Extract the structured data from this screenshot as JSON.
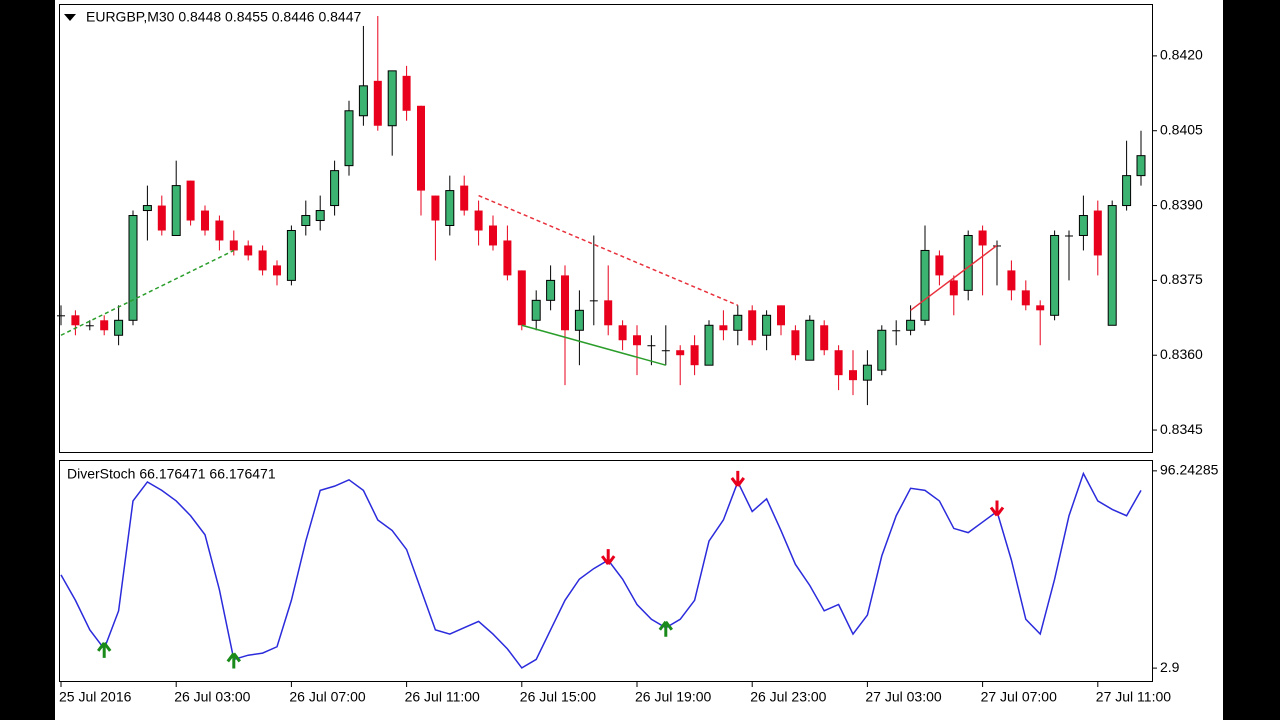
{
  "chart_data": [
    {
      "type": "candlestick",
      "title": "EURGBP,M30  0.8448 0.8455 0.8446 0.8447",
      "open": [
        0.8368,
        0.8368,
        0.8366,
        0.8367,
        0.8364,
        0.8367,
        0.8389,
        0.839,
        0.8384,
        0.8395,
        0.8389,
        0.8387,
        0.8383,
        0.8382,
        0.8381,
        0.8378,
        0.8375,
        0.8386,
        0.8387,
        0.839,
        0.8398,
        0.8408,
        0.8415,
        0.8406,
        0.8416,
        0.841,
        0.8392,
        0.8386,
        0.8394,
        0.8389,
        0.8386,
        0.8383,
        0.8377,
        0.8367,
        0.8371,
        0.8376,
        0.8365,
        0.8371,
        0.8371,
        0.8366,
        0.8364,
        0.8362,
        0.8361,
        0.8361,
        0.8362,
        0.8358,
        0.8366,
        0.8365,
        0.8369,
        0.8364,
        0.837,
        0.8365,
        0.8359,
        0.8366,
        0.8361,
        0.8357,
        0.8355,
        0.8357,
        0.8365,
        0.8365,
        0.8367,
        0.838,
        0.8375,
        0.8373,
        0.8385,
        0.8382,
        0.8377,
        0.8373,
        0.837,
        0.8368,
        0.8384,
        0.8384,
        0.8389,
        0.8366,
        0.839,
        0.8396
      ],
      "high": [
        0.837,
        0.8369,
        0.8367,
        0.8368,
        0.837,
        0.8389,
        0.8394,
        0.8392,
        0.8399,
        0.8395,
        0.839,
        0.8388,
        0.8385,
        0.8383,
        0.8382,
        0.8379,
        0.8386,
        0.8391,
        0.8392,
        0.8399,
        0.8411,
        0.8426,
        0.8428,
        0.8417,
        0.8418,
        0.841,
        0.8392,
        0.8396,
        0.8396,
        0.8391,
        0.8388,
        0.8386,
        0.8377,
        0.8373,
        0.8378,
        0.8378,
        0.8373,
        0.8384,
        0.8378,
        0.8367,
        0.8366,
        0.8364,
        0.8366,
        0.8362,
        0.8364,
        0.8367,
        0.8369,
        0.837,
        0.837,
        0.8369,
        0.837,
        0.8366,
        0.8368,
        0.8367,
        0.8362,
        0.8361,
        0.8361,
        0.8366,
        0.8367,
        0.837,
        0.8386,
        0.8381,
        0.8376,
        0.8385,
        0.8386,
        0.8383,
        0.8379,
        0.8375,
        0.8371,
        0.8385,
        0.8385,
        0.8392,
        0.8391,
        0.8391,
        0.8403,
        0.8405
      ],
      "low": [
        0.8366,
        0.8364,
        0.8365,
        0.8364,
        0.8362,
        0.8366,
        0.8383,
        0.8384,
        0.8384,
        0.8386,
        0.8384,
        0.8381,
        0.838,
        0.8379,
        0.8376,
        0.8374,
        0.8374,
        0.8384,
        0.8385,
        0.8388,
        0.8396,
        0.8406,
        0.8405,
        0.84,
        0.8407,
        0.8388,
        0.8379,
        0.8384,
        0.8388,
        0.8382,
        0.8381,
        0.8375,
        0.8365,
        0.8365,
        0.8369,
        0.8354,
        0.8358,
        0.8366,
        0.8364,
        0.8361,
        0.8356,
        0.8358,
        0.8358,
        0.8354,
        0.8356,
        0.8358,
        0.8363,
        0.8362,
        0.8362,
        0.8361,
        0.8364,
        0.8359,
        0.8359,
        0.836,
        0.8353,
        0.8352,
        0.835,
        0.8356,
        0.8362,
        0.8364,
        0.8366,
        0.8374,
        0.8368,
        0.8371,
        0.8372,
        0.8374,
        0.8371,
        0.8369,
        0.8362,
        0.8367,
        0.8375,
        0.8381,
        0.8376,
        0.8366,
        0.8389,
        0.8394
      ],
      "close": [
        0.8368,
        0.8366,
        0.8366,
        0.8365,
        0.8367,
        0.8388,
        0.839,
        0.8385,
        0.8394,
        0.8387,
        0.8385,
        0.8383,
        0.8381,
        0.838,
        0.8377,
        0.8376,
        0.8385,
        0.8388,
        0.8389,
        0.8397,
        0.8409,
        0.8414,
        0.8406,
        0.8417,
        0.8409,
        0.8393,
        0.8387,
        0.8393,
        0.8389,
        0.8385,
        0.8382,
        0.8376,
        0.8366,
        0.8371,
        0.8375,
        0.8365,
        0.8369,
        0.8371,
        0.8366,
        0.8363,
        0.8362,
        0.8362,
        0.8361,
        0.836,
        0.8358,
        0.8366,
        0.8365,
        0.8368,
        0.8363,
        0.8368,
        0.8366,
        0.836,
        0.8367,
        0.8361,
        0.8356,
        0.8355,
        0.8358,
        0.8365,
        0.8365,
        0.8367,
        0.8381,
        0.8376,
        0.8372,
        0.8384,
        0.8382,
        0.8382,
        0.8373,
        0.837,
        0.8369,
        0.8384,
        0.8384,
        0.8388,
        0.838,
        0.839,
        0.8396,
        0.84
      ],
      "up_color": "#3cb371",
      "down_color": "#e8001c",
      "ylim": [
        0.83406,
        0.84302
      ],
      "yticks": [
        {
          "value": 0.842,
          "label": "0.8420"
        },
        0.8405,
        {
          "value": 0.839,
          "label": "0.8390"
        },
        0.8375,
        {
          "value": 0.836,
          "label": "0.8360"
        },
        0.8345
      ],
      "trendlines": [
        {
          "color": "#2a9d2a",
          "dashed": true,
          "x0": 0,
          "y0": 0.8364,
          "x1": 12,
          "y1": 0.8381
        },
        {
          "color": "#e8303c",
          "dashed": true,
          "x0": 29,
          "y0": 0.8392,
          "x1": 47,
          "y1": 0.837
        },
        {
          "color": "#2a9d2a",
          "dashed": false,
          "x0": 32,
          "y0": 0.8366,
          "x1": 42,
          "y1": 0.8358
        },
        {
          "color": "#e8303c",
          "dashed": false,
          "x0": 59,
          "y0": 0.8369,
          "x1": 65,
          "y1": 0.8382
        }
      ]
    },
    {
      "type": "line",
      "title": "DiverStoch 66.176471 66.176471",
      "values": [
        47,
        35,
        21,
        12,
        30,
        82,
        91,
        87,
        82,
        75,
        66,
        40,
        7,
        9,
        10,
        13,
        35,
        63,
        87,
        89,
        92,
        87,
        73,
        68,
        59,
        40,
        21,
        19,
        22,
        25,
        19,
        12,
        3,
        7,
        21,
        35,
        45,
        50,
        54,
        45,
        33,
        26,
        22,
        26,
        35,
        63,
        73,
        91,
        77,
        83,
        68,
        52,
        42,
        30,
        33,
        19,
        28,
        56,
        75,
        88,
        87,
        82,
        69,
        67,
        72,
        77,
        54,
        26,
        19,
        45,
        75,
        95,
        82,
        78,
        75,
        87
      ],
      "color": "#2b2bdc",
      "ylim": [
        -3.2,
        100.9
      ],
      "yticks": [
        96.24285,
        2.9
      ],
      "buy_signals": [
        3,
        12,
        42
      ],
      "sell_signals": [
        38,
        47,
        65
      ],
      "xticks": [
        {
          "value": 0,
          "label": "25 Jul 2016"
        },
        {
          "value": 8,
          "label": "26 Jul 03:00"
        },
        {
          "value": 16,
          "label": "26 Jul 07:00"
        },
        {
          "value": 24,
          "label": "26 Jul 11:00"
        },
        {
          "value": 32,
          "label": "26 Jul 15:00"
        },
        {
          "value": 40,
          "label": "26 Jul 19:00"
        },
        {
          "value": 48,
          "label": "26 Jul 23:00"
        },
        {
          "value": 56,
          "label": "27 Jul 03:00"
        },
        {
          "value": 64,
          "label": "27 Jul 07:00"
        },
        {
          "value": 72,
          "label": "27 Jul 11:00"
        }
      ]
    }
  ]
}
